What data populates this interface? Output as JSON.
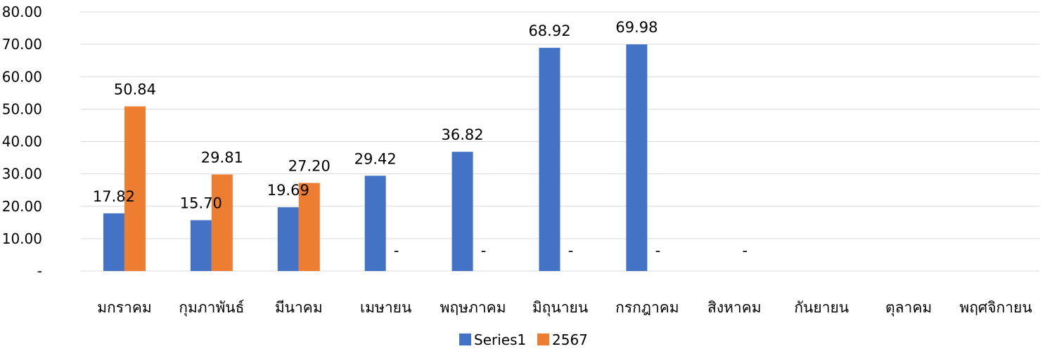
{
  "chart_data": {
    "type": "bar",
    "categories": [
      "มกราคม",
      "กุมภาพันธ์",
      "มีนาคม",
      "เมษายน",
      "พฤษภาคม",
      "มิถุนายน",
      "กรกฎาคม",
      "สิงหาคม",
      "กันยายน",
      "ตุลาคม",
      "พฤศจิกายน"
    ],
    "series": [
      {
        "name": "Series1",
        "color": "#4472C4",
        "values": [
          17.82,
          15.7,
          19.69,
          29.42,
          36.82,
          68.92,
          69.98,
          null,
          null,
          null,
          null
        ],
        "labels": [
          "17.82",
          "15.70",
          "19.69",
          "29.42",
          "36.82",
          "68.92",
          "69.98",
          "",
          "",
          "",
          ""
        ]
      },
      {
        "name": "2567",
        "color": "#ED7D31",
        "values": [
          50.84,
          29.81,
          27.2,
          0,
          0,
          0,
          0,
          0,
          null,
          null,
          null
        ],
        "labels": [
          "50.84",
          "29.81",
          "27.20",
          "-",
          "-",
          "-",
          "-",
          "-",
          "",
          "",
          ""
        ]
      }
    ],
    "ylim": [
      0,
      80
    ],
    "yticks": [
      0,
      10,
      20,
      30,
      40,
      50,
      60,
      70,
      80
    ],
    "ytick_labels": [
      "-",
      "10.00",
      "20.00",
      "30.00",
      "40.00",
      "50.00",
      "60.00",
      "70.00",
      "80.00"
    ],
    "grid": true,
    "legend": "bottom",
    "gridColor": "#D9D9D9"
  }
}
